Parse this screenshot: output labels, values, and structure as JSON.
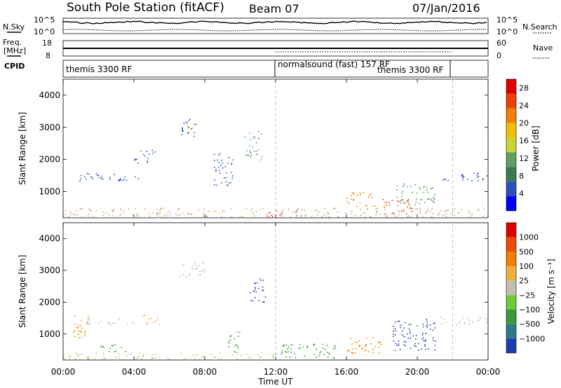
{
  "header": {
    "station": "South Pole Station (fitACF)",
    "beam": "Beam 07",
    "date": "07/Jan/2016"
  },
  "top_panels": {
    "nsky_label": "N.Sky",
    "nsearch_label": "N.Search",
    "noise_ticks_left": [
      "10^5",
      "10^0"
    ],
    "noise_ticks_right": [
      "10^5",
      "10^0"
    ],
    "freq_label_line1": "Freq.",
    "freq_label_line2": "[MHz]",
    "freq_ticks": [
      "18",
      "8"
    ],
    "nave_label": "Nave",
    "nave_ticks": [
      "60",
      "0"
    ],
    "cpid_label": "CPID",
    "cpid_segments": [
      {
        "label": "themis 3300 RF",
        "start_hour": 0,
        "end_hour": 12
      },
      {
        "label": "normalsound (fast) 157 RF",
        "start_hour": 12,
        "end_hour": 22
      },
      {
        "label": "themis 3300 RF",
        "start_hour": 12,
        "end_hour": 22
      }
    ]
  },
  "chart_data": [
    {
      "type": "heatmap",
      "title": "",
      "parameter": "Power",
      "ylabel": "Slant Range [km]",
      "xlabel": "",
      "x_ticks": [
        "00:00",
        "04:00",
        "08:00",
        "12:00",
        "16:00",
        "20:00",
        "00:00"
      ],
      "x_range_hours": [
        0,
        24
      ],
      "ylim": [
        180,
        4500
      ],
      "y_ticks": [
        1000,
        2000,
        3000,
        4000
      ],
      "colorbar": {
        "label": "Power [dB]",
        "ticks": [
          4,
          8,
          12,
          16,
          20,
          24,
          28
        ],
        "range": [
          0,
          30
        ],
        "colors": [
          "#0000ff",
          "#2a52be",
          "#3a7a52",
          "#5fa060",
          "#c8d830",
          "#f0c000",
          "#f08000",
          "#f04000",
          "#e00000"
        ]
      },
      "echo_regions": [
        {
          "h0": 0.0,
          "h1": 12.0,
          "r0": 180,
          "r1": 500,
          "color": "#c8a878"
        },
        {
          "h0": 11.5,
          "h1": 12.4,
          "r0": 200,
          "r1": 420,
          "color": "#ff2000"
        },
        {
          "h0": 0.8,
          "h1": 2.2,
          "r0": 1300,
          "r1": 1600,
          "color": "#2a4fb0"
        },
        {
          "h0": 2.0,
          "h1": 4.5,
          "r0": 1350,
          "r1": 1550,
          "color": "#2a4fb0"
        },
        {
          "h0": 4.0,
          "h1": 5.2,
          "r0": 1900,
          "r1": 2300,
          "color": "#2a4fb0"
        },
        {
          "h0": 6.6,
          "h1": 7.6,
          "r0": 2700,
          "r1": 3300,
          "color": "#2a4fb0"
        },
        {
          "h0": 7.0,
          "h1": 7.4,
          "r0": 2900,
          "r1": 3200,
          "color": "#e8c000"
        },
        {
          "h0": 8.5,
          "h1": 9.6,
          "r0": 1200,
          "r1": 2200,
          "color": "#2a4fb0"
        },
        {
          "h0": 10.2,
          "h1": 11.2,
          "r0": 2000,
          "r1": 2900,
          "color": "#5fa060"
        },
        {
          "h0": 12.0,
          "h1": 24.0,
          "r0": 180,
          "r1": 500,
          "color": "#b8a070"
        },
        {
          "h0": 16.0,
          "h1": 17.6,
          "r0": 550,
          "r1": 1000,
          "color": "#f08000"
        },
        {
          "h0": 18.0,
          "h1": 19.6,
          "r0": 300,
          "r1": 800,
          "color": "#f04000"
        },
        {
          "h0": 18.8,
          "h1": 21.0,
          "r0": 600,
          "r1": 1300,
          "color": "#5fa060"
        },
        {
          "h0": 21.2,
          "h1": 24.0,
          "r0": 1350,
          "r1": 1600,
          "color": "#2a4fb0"
        }
      ]
    },
    {
      "type": "heatmap",
      "title": "",
      "parameter": "Velocity",
      "ylabel": "Slant Range [km]",
      "xlabel": "Time UT",
      "x_ticks": [
        "00:00",
        "04:00",
        "08:00",
        "12:00",
        "16:00",
        "20:00",
        "00:00"
      ],
      "x_range_hours": [
        0,
        24
      ],
      "ylim": [
        180,
        4500
      ],
      "y_ticks": [
        1000,
        2000,
        3000,
        4000
      ],
      "colorbar": {
        "label": "Velocity [m s⁻¹]",
        "ticks": [
          "1000",
          "500",
          "100",
          "25",
          "−25",
          "−100",
          "−500",
          "−1000"
        ],
        "colors": [
          "#1c3fb0",
          "#2f7a8a",
          "#3a9a3a",
          "#6dcc3a",
          "#c0c0b0",
          "#f0b040",
          "#f08000",
          "#f04a00",
          "#e00000"
        ]
      },
      "echo_regions": [
        {
          "h0": 0.0,
          "h1": 12.0,
          "r0": 180,
          "r1": 420,
          "color": "#a8cc70"
        },
        {
          "h0": 0.5,
          "h1": 1.4,
          "r0": 800,
          "r1": 1600,
          "color": "#f08000"
        },
        {
          "h0": 1.0,
          "h1": 4.0,
          "r0": 1300,
          "r1": 1500,
          "color": "#c0c0b0"
        },
        {
          "h0": 2.0,
          "h1": 3.5,
          "r0": 450,
          "r1": 700,
          "color": "#3a9a3a"
        },
        {
          "h0": 4.5,
          "h1": 5.5,
          "r0": 1300,
          "r1": 1700,
          "color": "#f0b040"
        },
        {
          "h0": 6.5,
          "h1": 8.0,
          "r0": 2800,
          "r1": 3300,
          "color": "#c0c0b0"
        },
        {
          "h0": 9.3,
          "h1": 10.0,
          "r0": 400,
          "r1": 1100,
          "color": "#3a9a3a"
        },
        {
          "h0": 10.5,
          "h1": 11.4,
          "r0": 2000,
          "r1": 2800,
          "color": "#1c3fb0"
        },
        {
          "h0": 12.0,
          "h1": 15.5,
          "r0": 250,
          "r1": 700,
          "color": "#3a9a3a"
        },
        {
          "h0": 16.0,
          "h1": 18.2,
          "r0": 400,
          "r1": 900,
          "color": "#f08000"
        },
        {
          "h0": 18.6,
          "h1": 21.0,
          "r0": 500,
          "r1": 1500,
          "color": "#1c3fb0"
        },
        {
          "h0": 21.2,
          "h1": 24.0,
          "r0": 1300,
          "r1": 1550,
          "color": "#c0c0b0"
        }
      ]
    }
  ]
}
